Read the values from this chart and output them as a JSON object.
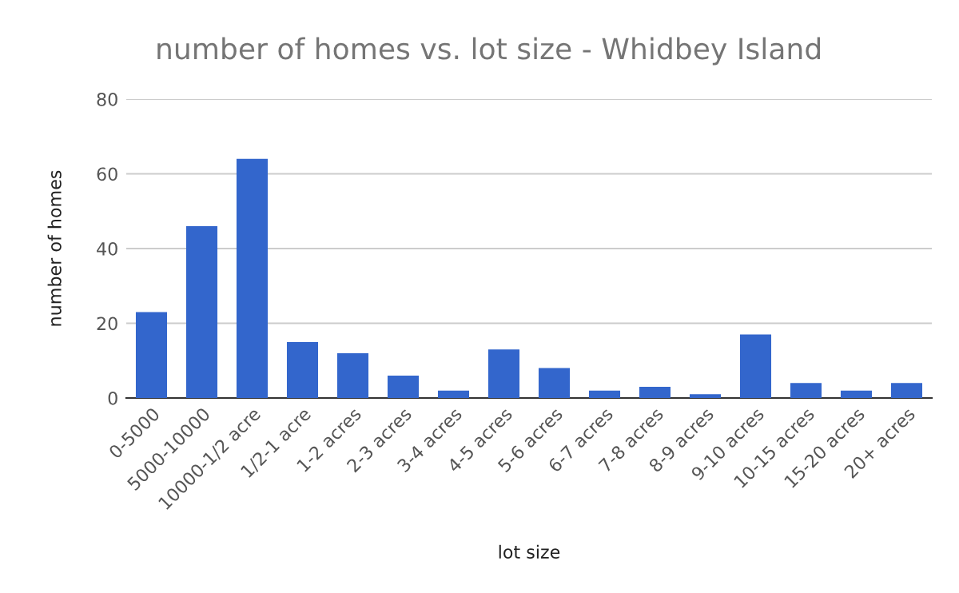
{
  "chart_data": {
    "type": "bar",
    "title": "number of homes vs. lot size - Whidbey Island",
    "xlabel": "lot size",
    "ylabel": "number of homes",
    "categories": [
      "0-5000",
      "5000-10000",
      "10000-1/2 acre",
      "1/2-1 acre",
      "1-2 acres",
      "2-3 acres",
      "3-4 acres",
      "4-5 acres",
      "5-6 acres",
      "6-7 acres",
      "7-8 acres",
      "8-9 acres",
      "9-10 acres",
      "10-15 acres",
      "15-20 acres",
      "20+ acres"
    ],
    "values": [
      23,
      46,
      64,
      15,
      12,
      6,
      2,
      13,
      8,
      2,
      3,
      1,
      17,
      4,
      2,
      4
    ],
    "color": "#3366cc",
    "ylim": [
      0,
      80
    ],
    "yticks": [
      0,
      20,
      40,
      60,
      80
    ],
    "grid": "y"
  }
}
